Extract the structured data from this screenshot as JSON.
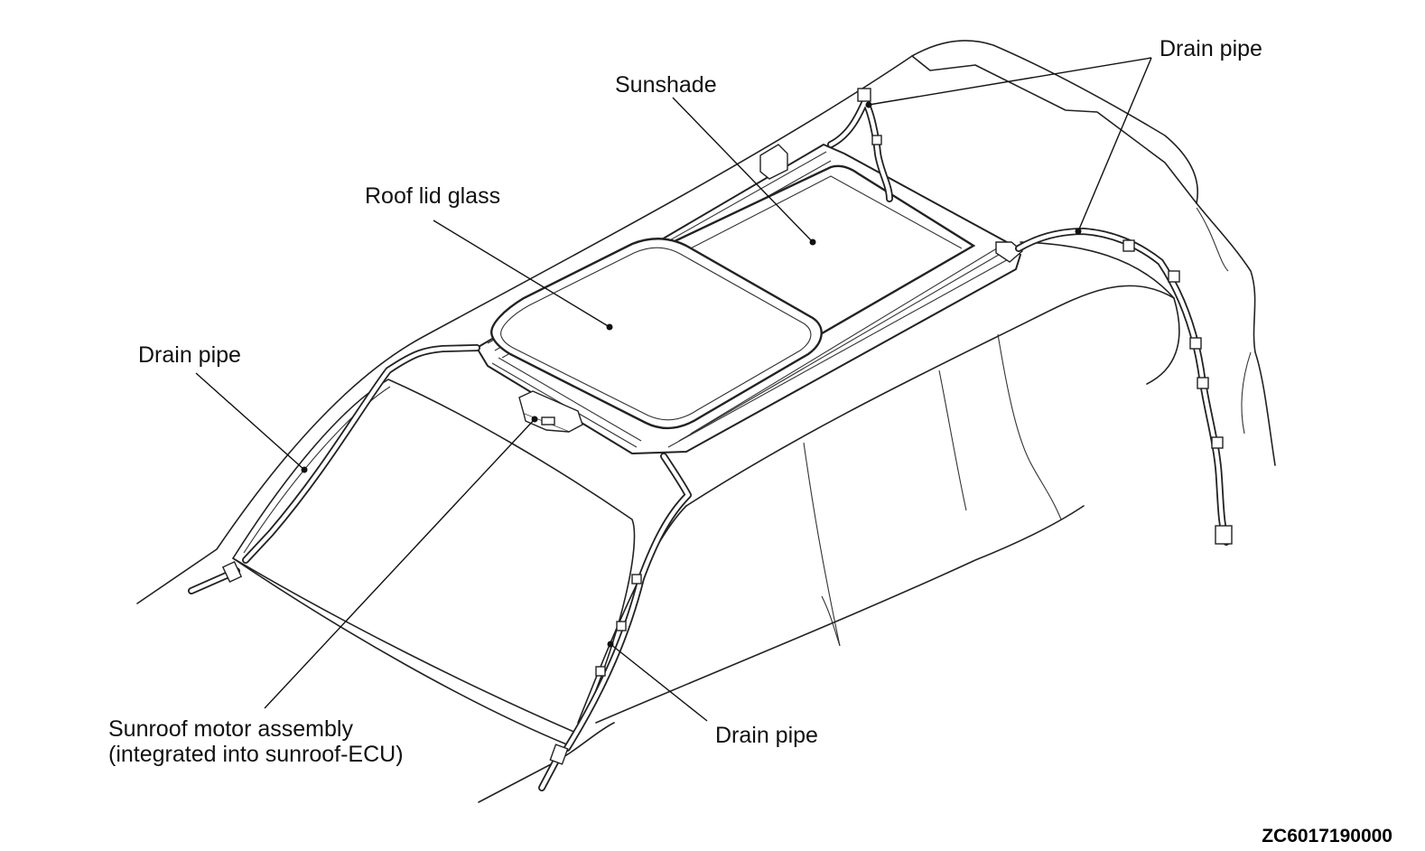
{
  "labels": {
    "drain_pipe_top_right": "Drain pipe",
    "sunshade": "Sunshade",
    "roof_lid_glass": "Roof lid glass",
    "drain_pipe_left": "Drain pipe",
    "motor_line1": "Sunroof motor assembly",
    "motor_line2": "(integrated into sunroof-ECU)",
    "drain_pipe_bottom": "Drain pipe"
  },
  "figure_code": "ZC6017190000"
}
